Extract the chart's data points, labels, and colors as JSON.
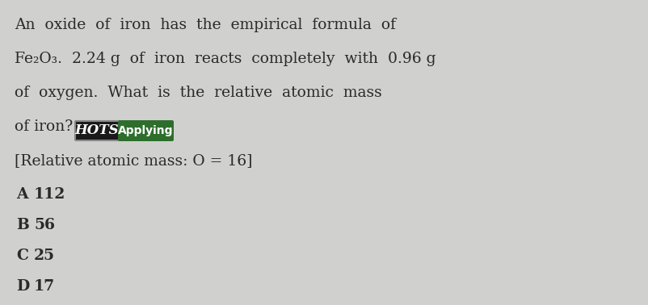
{
  "background_color": "#d0d0ce",
  "line1": "An  oxide  of  iron  has  the  empirical  formula  of",
  "line2": "Fe₂O₃.  2.24 g  of  iron  reacts  completely  with  0.96 g",
  "line3": "of  oxygen.  What  is  the  relative  atomic  mass",
  "line4_pre": "of iron? ",
  "hots_text": "HOTS",
  "applying_text": "Applying",
  "line5": "[Relative atomic mass: O = 16]",
  "optionA_letter": "A",
  "optionA_val": "112",
  "optionB_letter": "B",
  "optionB_val": "56",
  "optionC_letter": "C",
  "optionC_val": "25",
  "optionD_letter": "D",
  "optionD_val": "17",
  "text_color": "#2a2a2a",
  "hots_bg": "#1a1a1a",
  "hots_fg": "#ffffff",
  "hots_border": "#888888",
  "applying_bg": "#2d6e2d",
  "applying_fg": "#ffffff",
  "font_size": 13.5,
  "badge_font_size": 11,
  "option_font_size": 13.5,
  "figwidth": 8.03,
  "figheight": 3.78,
  "dpi": 100
}
